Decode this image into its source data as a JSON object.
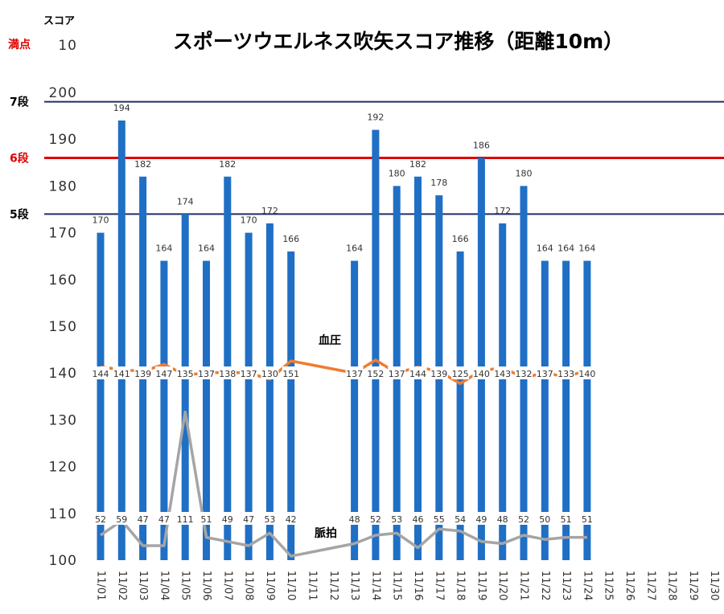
{
  "chart_data": {
    "type": "bar",
    "title": "スポーツウエルネス吹矢スコア推移（距離10m）",
    "ylabel": "スコア",
    "ylim": [
      100,
      200
    ],
    "top_label": "満点",
    "top_tick": "10",
    "y_ticks": [
      "100",
      "110",
      "120",
      "130",
      "140",
      "150",
      "160",
      "170",
      "180",
      "190",
      "200"
    ],
    "categories": [
      "11/01",
      "11/02",
      "11/03",
      "11/04",
      "11/05",
      "11/06",
      "11/07",
      "11/08",
      "11/09",
      "11/10",
      "11/11",
      "11/12",
      "11/13",
      "11/14",
      "11/15",
      "11/16",
      "11/17",
      "11/18",
      "11/19",
      "11/20",
      "11/21",
      "11/22",
      "11/23",
      "11/24",
      "11/25",
      "11/26",
      "11/27",
      "11/28",
      "11/29",
      "11/30"
    ],
    "series": [
      {
        "type": "bar",
        "color": "#1f6fc5",
        "values": [
          170,
          194,
          182,
          164,
          174,
          164,
          182,
          170,
          172,
          166,
          null,
          null,
          164,
          192,
          180,
          182,
          178,
          166,
          186,
          172,
          180,
          164,
          164,
          164,
          null,
          null,
          null,
          null,
          null,
          null
        ]
      },
      {
        "name": "血圧",
        "type": "line",
        "color": "#ed7d31",
        "values": [
          144,
          141,
          139,
          147,
          135,
          137,
          138,
          137,
          130,
          151,
          null,
          null,
          137,
          152,
          137,
          144,
          139,
          125,
          140,
          143,
          132,
          137,
          133,
          140,
          null,
          null,
          null,
          null,
          null,
          null
        ]
      },
      {
        "name": "脈拍",
        "type": "line",
        "color": "#a5a5a5",
        "values": [
          52,
          59,
          47,
          47,
          111,
          51,
          49,
          47,
          53,
          42,
          null,
          null,
          48,
          52,
          53,
          46,
          55,
          54,
          49,
          48,
          52,
          50,
          51,
          51,
          null,
          null,
          null,
          null,
          null,
          null
        ]
      }
    ],
    "reference_lines": [
      {
        "label": "7段",
        "value": 198,
        "color": "#1f2d6b"
      },
      {
        "label": "6段",
        "value": 186,
        "color": "#e00000"
      },
      {
        "label": "5段",
        "value": 174,
        "color": "#1f2d6b"
      }
    ],
    "grid": false
  }
}
